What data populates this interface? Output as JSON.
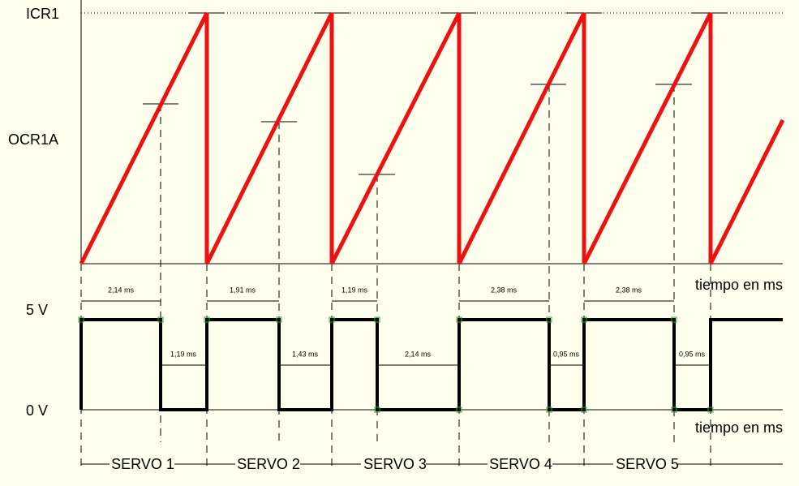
{
  "labels": {
    "icr": "ICR1",
    "ocr": "OCR1A",
    "high": "5 V",
    "low": "0 V",
    "time_top": "tiempo en ms",
    "time_bottom": "tiempo en ms"
  },
  "high_times": [
    "2,14 ms",
    "1,91 ms",
    "1,19 ms",
    "2,38 ms",
    "2,38 ms"
  ],
  "low_times": [
    "1,19 ms",
    "1,43 ms",
    "2,14 ms",
    "0,95 ms",
    "0,95 ms"
  ],
  "servos": [
    "SERVO 1",
    "SERVO 2",
    "SERVO 3",
    "SERVO 4",
    "SERVO 5"
  ]
}
